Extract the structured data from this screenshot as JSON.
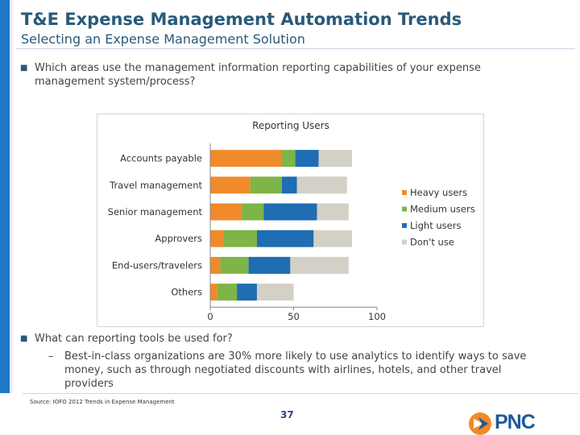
{
  "header": {
    "title": "T&E Expense Management Automation Trends",
    "subtitle": "Selecting an Expense Management Solution"
  },
  "questions": {
    "q1": "Which areas use the management information reporting capabilities of your expense management system/process?",
    "q2": "What can reporting tools be used for?",
    "q2_sub": "Best-in-class organizations are 30% more likely to use analytics to identify ways to save money, such as through negotiated discounts with airlines, hotels, and other travel providers"
  },
  "chart_data": {
    "type": "bar",
    "orientation": "horizontal",
    "stacked": true,
    "title": "Reporting Users",
    "categories": [
      "Accounts payable",
      "Travel management",
      "Senior management",
      "Approvers",
      "End-users/travelers",
      "Others"
    ],
    "series": [
      {
        "name": "Heavy users",
        "color": "#f08a2a",
        "values": [
          43,
          24,
          19,
          8,
          6,
          4
        ]
      },
      {
        "name": "Medium users",
        "color": "#7fb446",
        "values": [
          8,
          19,
          13,
          20,
          17,
          12
        ]
      },
      {
        "name": "Light users",
        "color": "#1f6db3",
        "values": [
          14,
          9,
          32,
          34,
          25,
          12
        ]
      },
      {
        "name": "Don't use",
        "color": "#d3d0c6",
        "values": [
          20,
          30,
          19,
          23,
          35,
          22
        ]
      }
    ],
    "xlim": [
      0,
      100
    ],
    "xticks": [
      0,
      50,
      100
    ],
    "grid": false,
    "legend": "right"
  },
  "footer": {
    "source": "Source: IOFO 2012 Trends in Expense Management",
    "page": "37"
  },
  "logo": {
    "text": "PNC",
    "color": "#1f5a9a",
    "mark_color": "#f08a2a"
  }
}
